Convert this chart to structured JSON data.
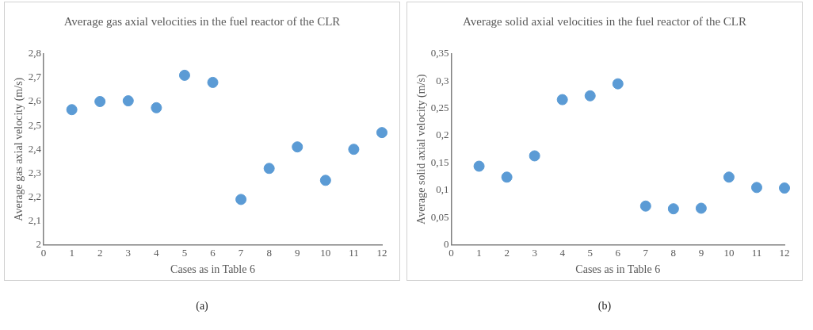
{
  "chart_data": [
    {
      "type": "scatter",
      "title": "Average gas axial velocities in the fuel reactor of the CLR",
      "xlabel": "Cases as in Table 6",
      "ylabel": "Average gas axial velocity (m/s)",
      "annotations": [
        "(a)"
      ],
      "color": "#5b9bd5",
      "marker": "circle",
      "x": [
        1,
        2,
        3,
        4,
        5,
        6,
        7,
        8,
        9,
        10,
        11,
        12
      ],
      "values": [
        2.566,
        2.6,
        2.603,
        2.574,
        2.71,
        2.68,
        2.19,
        2.32,
        2.41,
        2.27,
        2.4,
        2.47
      ],
      "xlim": [
        0,
        12
      ],
      "xticks": [
        0,
        1,
        2,
        3,
        4,
        5,
        6,
        7,
        8,
        9,
        10,
        11,
        12
      ],
      "ylim": [
        2,
        2.8
      ],
      "yticks": [
        2,
        {
          "value": 2.1,
          "label": "2,1"
        },
        {
          "value": 2.2,
          "label": "2,2"
        },
        {
          "value": 2.3,
          "label": "2,3"
        },
        {
          "value": 2.4,
          "label": "2,4"
        },
        {
          "value": 2.5,
          "label": "2,5"
        },
        {
          "value": 2.6,
          "label": "2,6"
        },
        {
          "value": 2.7,
          "label": "2,7"
        },
        {
          "value": 2.8,
          "label": "2,8"
        }
      ],
      "grid": false,
      "legend": false
    },
    {
      "type": "scatter",
      "title": "Average  solid axial velocities in the fuel reactor of the CLR",
      "xlabel": "Cases as in Table 6",
      "ylabel": "Average solid axial velocity (m/s)",
      "annotations": [
        "(b)"
      ],
      "color": "#5b9bd5",
      "marker": "circle",
      "x": [
        1,
        2,
        3,
        4,
        5,
        6,
        7,
        8,
        9,
        10,
        11,
        12
      ],
      "values": [
        0.144,
        0.124,
        0.163,
        0.266,
        0.273,
        0.295,
        0.071,
        0.066,
        0.067,
        0.124,
        0.105,
        0.104
      ],
      "xlim": [
        0,
        12
      ],
      "xticks": [
        0,
        1,
        2,
        3,
        4,
        5,
        6,
        7,
        8,
        9,
        10,
        11,
        12
      ],
      "ylim": [
        0,
        0.35
      ],
      "yticks": [
        0,
        {
          "value": 0.05,
          "label": "0,05"
        },
        {
          "value": 0.1,
          "label": "0,1"
        },
        {
          "value": 0.15,
          "label": "0,15"
        },
        {
          "value": 0.2,
          "label": "0,2"
        },
        {
          "value": 0.25,
          "label": "0,25"
        },
        {
          "value": 0.3,
          "label": "0,3"
        },
        {
          "value": 0.35,
          "label": "0,35"
        }
      ],
      "grid": false,
      "legend": false
    }
  ]
}
